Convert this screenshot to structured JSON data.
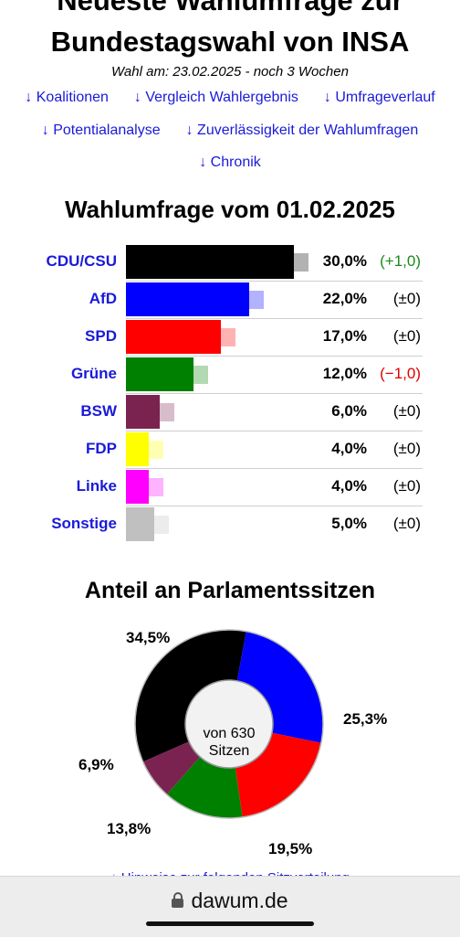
{
  "header": {
    "title_line1": "Neueste Wahlumfrage zur",
    "title_line2": "Bundestagswahl von INSA",
    "election_date": "Wahl am: 23.02.2025 - noch 3 Wochen"
  },
  "nav": {
    "links": [
      "↓ Koalitionen",
      "↓ Vergleich Wahlergebnis",
      "↓ Umfrageverlauf",
      "↓ Potentialanalyse",
      "↓ Zuverlässigkeit der Wahlumfragen",
      "↓ Chronik"
    ]
  },
  "poll": {
    "title": "Wahlumfrage vom 01.02.2025"
  },
  "seats": {
    "title": "Anteil an Parlamentssitzen",
    "center_line1": "von 630",
    "center_line2": "Sitzen"
  },
  "footer": {
    "partial_link": "↓ Hinweise zur folgenden Sitzverteilung"
  },
  "browser": {
    "url": "dawum.de"
  },
  "colors": {
    "link": "#1a1ad9",
    "positive_change": "#1a8a1a",
    "negative_change": "#e00000"
  },
  "chart_data": [
    {
      "type": "bar",
      "orientation": "horizontal",
      "title": "Wahlumfrage vom 01.02.2025",
      "categories": [
        "CDU/CSU",
        "AfD",
        "SPD",
        "Grüne",
        "BSW",
        "FDP",
        "Linke",
        "Sonstige"
      ],
      "values": [
        30.0,
        22.0,
        17.0,
        12.0,
        6.0,
        4.0,
        4.0,
        5.0
      ],
      "value_labels": [
        "30,0%",
        "22,0%",
        "17,0%",
        "12,0%",
        "6,0%",
        "4,0%",
        "4,0%",
        "5,0%"
      ],
      "changes": [
        1.0,
        0,
        0,
        -1.0,
        0,
        0,
        0,
        0
      ],
      "change_labels": [
        "(+1,0)",
        "(±0)",
        "(±0)",
        "(−1,0)",
        "(±0)",
        "(±0)",
        "(±0)",
        "(±0)"
      ],
      "colors": [
        "#000000",
        "#0000ff",
        "#ff0000",
        "#008000",
        "#7b2350",
        "#ffff00",
        "#ff00ff",
        "#c0c0c0"
      ],
      "xlim": [
        0,
        30
      ]
    },
    {
      "type": "pie",
      "style": "donut",
      "title": "Anteil an Parlamentssitzen",
      "categories": [
        "CDU/CSU",
        "AfD",
        "SPD",
        "Grüne",
        "BSW"
      ],
      "values": [
        34.5,
        25.3,
        19.5,
        13.8,
        6.9
      ],
      "value_labels": [
        "34,5%",
        "25,3%",
        "19,5%",
        "13,8%",
        "6,9%"
      ],
      "colors": [
        "#000000",
        "#0000ff",
        "#ff0000",
        "#008000",
        "#7b2350"
      ]
    }
  ]
}
